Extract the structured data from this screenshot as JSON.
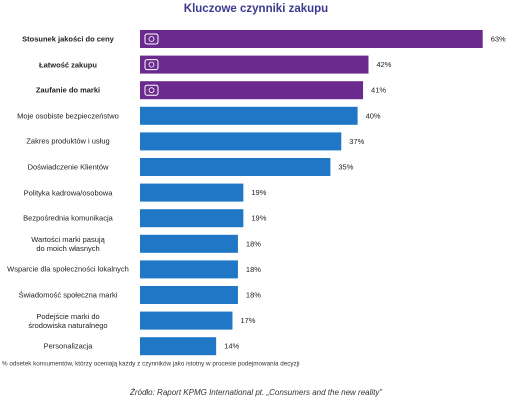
{
  "chart_data": {
    "type": "bar",
    "orientation": "horizontal",
    "title": "Kluczowe czynniki zakupu",
    "categories": [
      "Stosunek jakości do ceny",
      "Łatwość zakupu",
      "Zaufanie do marki",
      "Moje osobiste bezpieczeństwo",
      "Zakres produktów i usług",
      "Doświadczenie Klientów",
      "Polityka kadrowa/osobowa",
      "Bezpośrednia komunikacja",
      "Wartości marki pasują\ndo moich własnych",
      "Wsparcie dla społeczności lokalnych",
      "Świadomość społeczna marki",
      "Podejście marki do\nśrodowiska naturalnego",
      "Personalizacja"
    ],
    "values": [
      63,
      42,
      41,
      40,
      37,
      35,
      19,
      19,
      18,
      18,
      18,
      17,
      14
    ],
    "value_labels": [
      "63%",
      "42%",
      "41%",
      "40%",
      "37%",
      "35%",
      "19%",
      "19%",
      "18%",
      "18%",
      "18%",
      "17%",
      "14%"
    ],
    "colors": [
      "#6b2b8e",
      "#6b2b8e",
      "#6b2b8e",
      "#1f77c6",
      "#1f77c6",
      "#1f77c6",
      "#1f77c6",
      "#1f77c6",
      "#1f77c6",
      "#1f77c6",
      "#1f77c6",
      "#1f77c6",
      "#1f77c6"
    ],
    "footnote": "% odsetek konsumentów, którzy oceniają każdy z czynników jako istotny w procesie podejmowania decyzji",
    "source": "Źródło: Raport KPMG International pt. „Consumers and the new reality”"
  }
}
